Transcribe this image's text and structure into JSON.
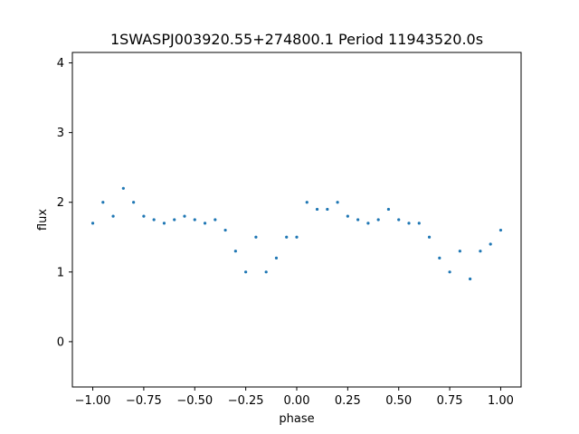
{
  "chart_data": {
    "type": "scatter",
    "title": "1SWASPJ003920.55+274800.1 Period 11943520.0s",
    "xlabel": "phase",
    "ylabel": "flux",
    "xlim": [
      -1.1,
      1.1
    ],
    "ylim": [
      -0.65,
      4.15
    ],
    "xticks": [
      -1.0,
      -0.75,
      -0.5,
      -0.25,
      0.0,
      0.25,
      0.5,
      0.75,
      1.0
    ],
    "xtick_labels": [
      "−1.00",
      "−0.75",
      "−0.50",
      "−0.25",
      "0.00",
      "0.25",
      "0.50",
      "0.75",
      "1.00"
    ],
    "yticks": [
      0,
      1,
      2,
      3,
      4
    ],
    "ytick_labels": [
      "0",
      "1",
      "2",
      "3",
      "4"
    ],
    "grid": false,
    "marker_color": "#1f77b4",
    "series": [
      {
        "x": [
          -1.0,
          -0.95,
          -0.9,
          -0.85,
          -0.8,
          -0.75,
          -0.7,
          -0.65,
          -0.6,
          -0.55,
          -0.5,
          -0.45,
          -0.4,
          -0.35,
          -0.3,
          -0.25,
          -0.2,
          -0.15,
          -0.1,
          -0.05,
          0.0,
          0.05,
          0.1,
          0.15,
          0.2,
          0.25,
          0.3,
          0.35,
          0.4,
          0.45,
          0.5,
          0.55,
          0.6,
          0.65,
          0.7,
          0.75,
          0.8,
          0.85,
          0.9,
          0.95,
          1.0
        ],
        "y": [
          1.7,
          2.0,
          1.8,
          2.2,
          2.0,
          1.8,
          1.75,
          1.7,
          1.75,
          1.8,
          1.75,
          1.7,
          1.75,
          1.6,
          1.3,
          1.0,
          1.5,
          1.0,
          1.2,
          1.5,
          1.5,
          2.0,
          1.9,
          1.9,
          2.0,
          1.8,
          1.75,
          1.7,
          1.75,
          1.9,
          1.75,
          1.7,
          1.7,
          1.5,
          1.2,
          1.0,
          1.3,
          0.9,
          1.3,
          1.4,
          1.6
        ]
      }
    ]
  }
}
